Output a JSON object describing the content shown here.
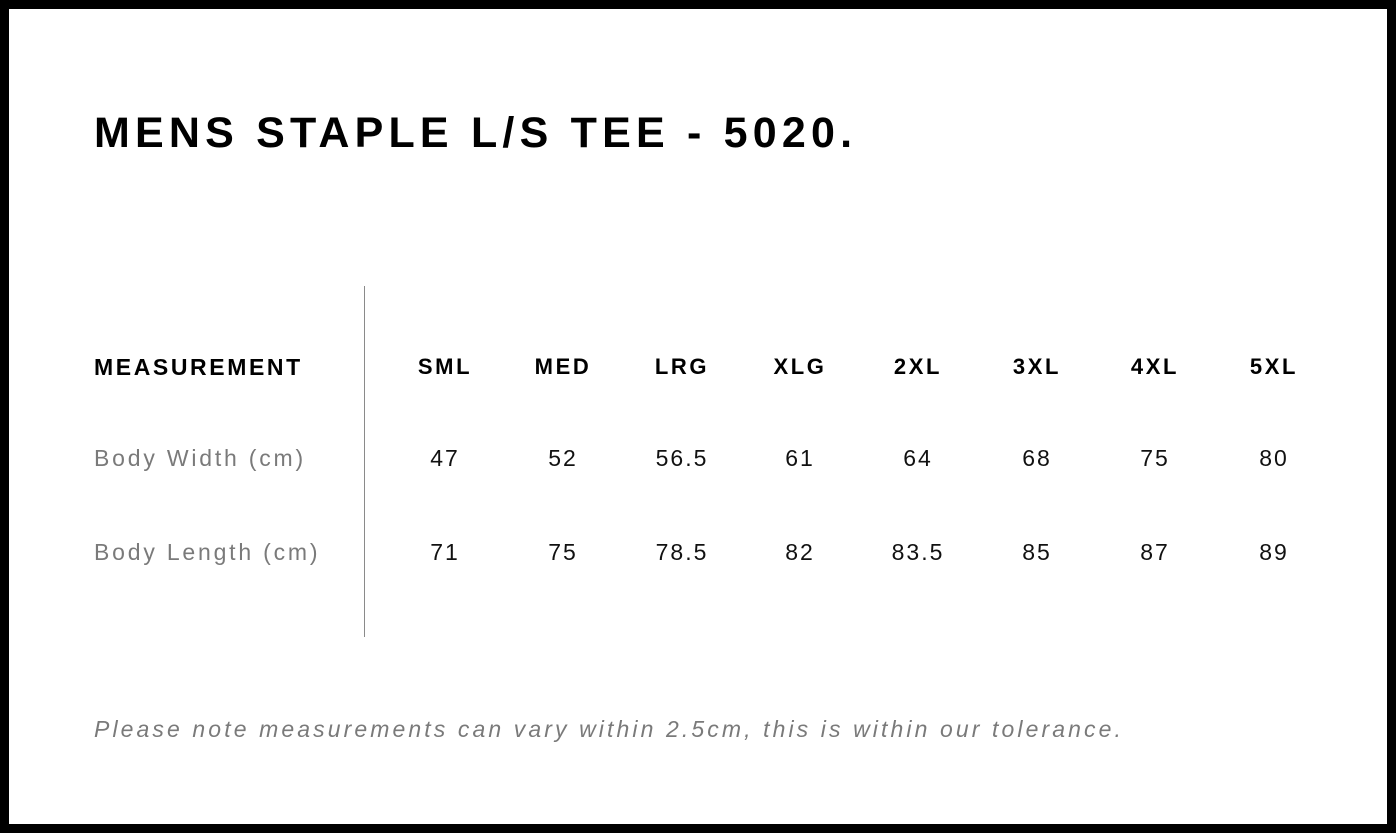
{
  "title": "MENS STAPLE L/S TEE - 5020.",
  "table": {
    "header_label": "MEASUREMENT",
    "sizes": [
      "SML",
      "MED",
      "LRG",
      "XLG",
      "2XL",
      "3XL",
      "4XL",
      "5XL"
    ],
    "rows": [
      {
        "label": "Body Width (cm)",
        "values": [
          "47",
          "52",
          "56.5",
          "61",
          "64",
          "68",
          "75",
          "80"
        ]
      },
      {
        "label": "Body Length (cm)",
        "values": [
          "71",
          "75",
          "78.5",
          "82",
          "83.5",
          "85",
          "87",
          "89"
        ]
      }
    ]
  },
  "note": "Please note measurements can vary within 2.5cm, this is within our tolerance.",
  "colors": {
    "frame": "#000000",
    "label_gray": "#7a7a7a",
    "divider": "#8a8a8a"
  }
}
